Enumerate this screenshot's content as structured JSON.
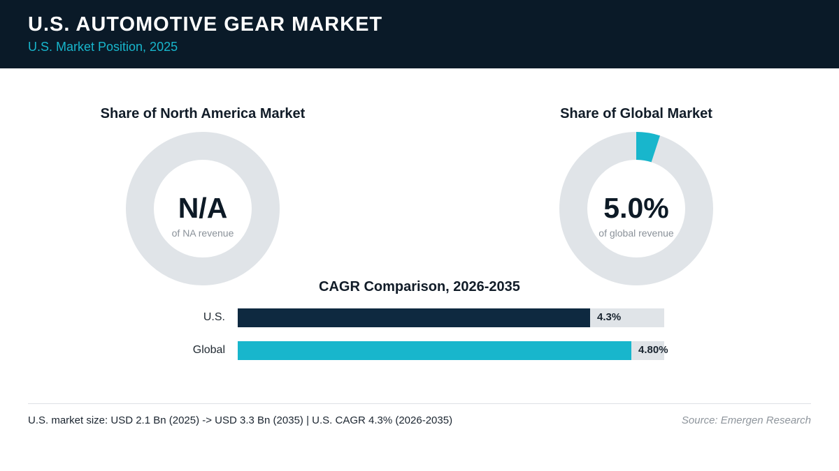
{
  "header": {
    "title": "U.S. AUTOMOTIVE GEAR MARKET",
    "subtitle": "U.S. Market Position, 2025"
  },
  "colors": {
    "header_bg": "#0a1a28",
    "accent_teal": "#18b6cc",
    "navy": "#0e2940",
    "track_gray": "#e0e4e8"
  },
  "chart_data": [
    {
      "type": "pie",
      "title": "Share of North America Market",
      "value_label": "N/A",
      "caption": "of NA revenue",
      "share_percent": null
    },
    {
      "type": "pie",
      "title": "Share of Global Market",
      "value_label": "5.0%",
      "caption": "of global revenue",
      "share_percent": 5.0
    },
    {
      "type": "bar",
      "title": "CAGR Comparison, 2026-2035",
      "categories": [
        "U.S.",
        "Global"
      ],
      "values": [
        4.3,
        4.8
      ],
      "value_labels": [
        "4.3%",
        "4.80%"
      ],
      "xlim": [
        0,
        5.2
      ],
      "bar_colors": [
        "#0e2940",
        "#18b6cc"
      ]
    }
  ],
  "footer": {
    "note": "U.S. market size: USD 2.1 Bn (2025) -> USD 3.3 Bn (2035)  |  U.S. CAGR 4.3% (2026-2035)",
    "source": "Source: Emergen Research"
  }
}
